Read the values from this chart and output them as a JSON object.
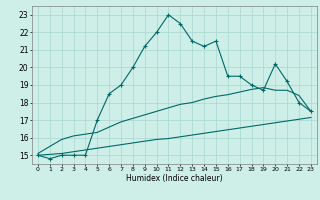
{
  "title": "",
  "xlabel": "Humidex (Indice chaleur)",
  "bg_color": "#ceeee8",
  "grid_color": "#a8d8d0",
  "line_color": "#006868",
  "xmin": -0.5,
  "xmax": 23.5,
  "ymin": 14.5,
  "ymax": 23.5,
  "yticks": [
    15,
    16,
    17,
    18,
    19,
    20,
    21,
    22,
    23
  ],
  "xticks": [
    0,
    1,
    2,
    3,
    4,
    5,
    6,
    7,
    8,
    9,
    10,
    11,
    12,
    13,
    14,
    15,
    16,
    17,
    18,
    19,
    20,
    21,
    22,
    23
  ],
  "main_x": [
    0,
    1,
    2,
    3,
    4,
    5,
    6,
    7,
    8,
    9,
    10,
    11,
    12,
    13,
    14,
    15,
    16,
    17,
    18,
    19,
    20,
    21,
    22,
    23
  ],
  "main_y": [
    15.0,
    14.8,
    15.0,
    15.0,
    15.0,
    17.0,
    18.5,
    19.0,
    20.0,
    21.2,
    22.0,
    23.0,
    22.5,
    21.5,
    21.2,
    21.5,
    19.5,
    19.5,
    19.0,
    18.7,
    20.2,
    19.2,
    18.0,
    17.5
  ],
  "upper_x": [
    0,
    1,
    2,
    3,
    4,
    5,
    6,
    7,
    8,
    9,
    10,
    11,
    12,
    13,
    14,
    15,
    16,
    17,
    18,
    19,
    20,
    21,
    22,
    23
  ],
  "upper_y": [
    15.1,
    15.5,
    15.9,
    16.1,
    16.2,
    16.3,
    16.6,
    16.9,
    17.1,
    17.3,
    17.5,
    17.7,
    17.9,
    18.0,
    18.2,
    18.35,
    18.45,
    18.6,
    18.75,
    18.85,
    18.7,
    18.7,
    18.4,
    17.5
  ],
  "lower_x": [
    0,
    1,
    2,
    3,
    4,
    5,
    6,
    7,
    8,
    9,
    10,
    11,
    12,
    13,
    14,
    15,
    16,
    17,
    18,
    19,
    20,
    21,
    22,
    23
  ],
  "lower_y": [
    15.0,
    15.05,
    15.1,
    15.2,
    15.3,
    15.4,
    15.5,
    15.6,
    15.7,
    15.8,
    15.9,
    15.95,
    16.05,
    16.15,
    16.25,
    16.35,
    16.45,
    16.55,
    16.65,
    16.75,
    16.85,
    16.95,
    17.05,
    17.15
  ]
}
